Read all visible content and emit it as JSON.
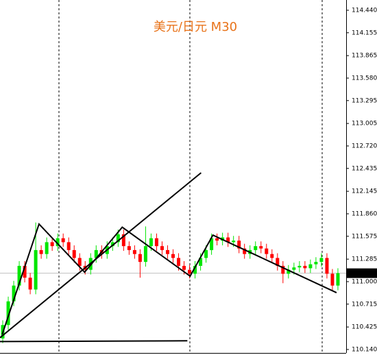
{
  "chart_data": {
    "type": "candlestick",
    "title": "美元/日元 M30",
    "title_color": "#e8731a",
    "up_color": "#00e600",
    "down_color": "#ff0000",
    "line_color": "#000000",
    "xlim": [
      -0.5,
      62.5
    ],
    "ylim": [
      110.07,
      114.57
    ],
    "yticks": [
      {
        "value": 114.44,
        "label": "114.440"
      },
      {
        "value": 114.155,
        "label": "114.155"
      },
      {
        "value": 113.865,
        "label": "113.865"
      },
      {
        "value": 113.58,
        "label": "113.580"
      },
      {
        "value": 113.295,
        "label": "113.295"
      },
      {
        "value": 113.005,
        "label": "113.005"
      },
      {
        "value": 112.72,
        "label": "112.720"
      },
      {
        "value": 112.435,
        "label": "112.435"
      },
      {
        "value": 112.145,
        "label": "112.145"
      },
      {
        "value": 111.86,
        "label": "111.860"
      },
      {
        "value": 111.575,
        "label": "111.575"
      },
      {
        "value": 111.285,
        "label": "111.285"
      },
      {
        "value": 111,
        "label": "111.000"
      },
      {
        "value": 110.715,
        "label": "110.715"
      },
      {
        "value": 110.425,
        "label": "110.425"
      },
      {
        "value": 110.14,
        "label": "110.140"
      }
    ],
    "last_price": {
      "value": 111.107,
      "label": "111.107"
    },
    "open": [
      110.28,
      110.45,
      110.75,
      110.95,
      111.2,
      111.05,
      110.9,
      111.4,
      111.35,
      111.5,
      111.45,
      111.55,
      111.5,
      111.4,
      111.3,
      111.2,
      111.15,
      111.3,
      111.4,
      111.35,
      111.45,
      111.5,
      111.6,
      111.45,
      111.4,
      111.35,
      111.25,
      111.45,
      111.55,
      111.45,
      111.4,
      111.35,
      111.3,
      111.2,
      111.15,
      111.1,
      111.2,
      111.3,
      111.4,
      111.55,
      111.52,
      111.56,
      111.5,
      111.52,
      111.42,
      111.35,
      111.4,
      111.45,
      111.42,
      111.35,
      111.3,
      111.2,
      111.1,
      111.15,
      111.18,
      111.2,
      111.17,
      111.22,
      111.25,
      111.3,
      111.1,
      110.95
    ],
    "high": [
      110.51,
      110.81,
      111.01,
      111.26,
      111.26,
      111.11,
      111.75,
      111.46,
      111.56,
      111.56,
      111.61,
      111.61,
      111.56,
      111.46,
      111.36,
      111.26,
      111.36,
      111.46,
      111.46,
      111.51,
      111.56,
      111.66,
      111.66,
      111.51,
      111.46,
      111.41,
      111.7,
      111.61,
      111.61,
      111.51,
      111.46,
      111.41,
      111.36,
      111.26,
      111.21,
      111.26,
      111.36,
      111.46,
      111.61,
      111.61,
      111.62,
      111.62,
      111.58,
      111.58,
      111.48,
      111.46,
      111.51,
      111.51,
      111.48,
      111.41,
      111.36,
      111.26,
      111.21,
      111.24,
      111.26,
      111.26,
      111.28,
      111.31,
      111.36,
      111.36,
      111.16,
      111.17
    ],
    "low": [
      110.22,
      110.39,
      110.69,
      110.89,
      110.99,
      110.84,
      110.84,
      111.29,
      111.29,
      111.39,
      111.39,
      111.44,
      111.34,
      111.24,
      111.14,
      111.09,
      111.09,
      111.24,
      111.29,
      111.29,
      111.39,
      111.44,
      111.39,
      111.34,
      111.29,
      111.05,
      111.19,
      111.39,
      111.39,
      111.34,
      111.29,
      111.24,
      111.14,
      111.09,
      111.04,
      111.04,
      111.14,
      111.24,
      111.34,
      111.46,
      111.46,
      111.44,
      111.44,
      111.36,
      111.29,
      111.29,
      111.34,
      111.36,
      111.29,
      111.24,
      111.14,
      110.98,
      111.04,
      111.09,
      111.12,
      111.11,
      111.11,
      111.16,
      111.19,
      111.04,
      110.89,
      110.89
    ],
    "close": [
      110.45,
      110.75,
      110.95,
      111.2,
      111.05,
      110.9,
      111.4,
      111.35,
      111.5,
      111.45,
      111.55,
      111.5,
      111.4,
      111.3,
      111.2,
      111.15,
      111.3,
      111.4,
      111.35,
      111.45,
      111.5,
      111.6,
      111.45,
      111.4,
      111.35,
      111.25,
      111.45,
      111.55,
      111.45,
      111.4,
      111.35,
      111.3,
      111.2,
      111.15,
      111.1,
      111.2,
      111.3,
      111.4,
      111.55,
      111.52,
      111.56,
      111.5,
      111.52,
      111.42,
      111.35,
      111.4,
      111.45,
      111.42,
      111.35,
      111.3,
      111.2,
      111.1,
      111.15,
      111.18,
      111.2,
      111.17,
      111.22,
      111.25,
      111.3,
      111.1,
      110.95,
      111.107
    ],
    "lines": [
      {
        "x": [
          -0.1,
          6.6,
          14.9,
          21.75,
          34.1,
          38.25,
          60.75
        ],
        "y": [
          110.33,
          111.73,
          111.12,
          111.69,
          111.07,
          111.59,
          110.86
        ]
      },
      {
        "x": [
          -0.5,
          36.1
        ],
        "y": [
          110.29,
          112.38
        ]
      },
      {
        "x": [
          -0.5,
          33.6
        ],
        "y": [
          110.24,
          110.25
        ]
      }
    ]
  }
}
